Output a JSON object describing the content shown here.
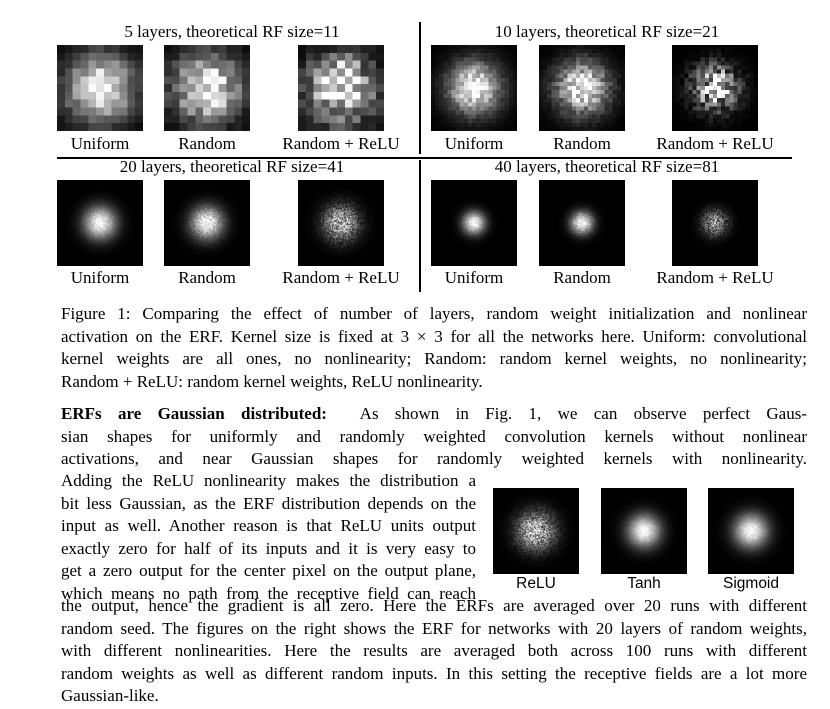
{
  "figure": {
    "panels": [
      {
        "title": "5 layers, theoretical RF size=11",
        "labels": [
          "Uniform",
          "Random",
          "Random + ReLU"
        ]
      },
      {
        "title": "10 layers, theoretical RF size=21",
        "labels": [
          "Uniform",
          "Random",
          "Random + ReLU"
        ]
      },
      {
        "title": "20 layers, theoretical RF size=41",
        "labels": [
          "Uniform",
          "Random",
          "Random + ReLU"
        ]
      },
      {
        "title": "40 layers, theoretical RF size=81",
        "labels": [
          "Uniform",
          "Random",
          "Random + ReLU"
        ]
      }
    ]
  },
  "caption": {
    "lines": [
      "Figure 1: Comparing the effect of number of layers, random weight initialization and nonlinear",
      "activation on the ERF. Kernel size is fixed at 3 × 3 for all the networks here. Uniform: convolutional",
      "kernel weights are all ones, no nonlinearity; Random: random kernel weights, no nonlinearity;",
      "Random + ReLU: random kernel weights, ReLU nonlinearity."
    ]
  },
  "paragraph": {
    "heading": "ERFs are Gaussian distributed:",
    "top_lines": [
      "As shown in Fig. 1, we can observe perfect Gaus-",
      "sian shapes for uniformly and randomly weighted convolution kernels without nonlinear",
      "activations, and near Gaussian shapes for randomly weighted kernels with nonlinearity."
    ],
    "left_lines": [
      "Adding the ReLU nonlinearity makes the distribution a",
      "bit less Gaussian, as the ERF distribution depends on the",
      "input as well. Another reason is that ReLU units output",
      "exactly zero for half of its inputs and it is very easy to",
      "get a zero output for the center pixel on the output plane,",
      "which means no path from the receptive field can reach"
    ],
    "bottom_lines": [
      "the output, hence the gradient is all zero. Here the ERFs are averaged over 20 runs with different",
      "random seed. The figures on the right shows the ERF for networks with 20 layers of random weights,",
      "with different nonlinearities. Here the results are averaged both across 100 runs with different",
      "random weights as well as different random inputs. In this setting the receptive fields are a lot more",
      "Gaussian-like."
    ]
  },
  "nonlinearity_figure": {
    "labels": [
      "ReLU",
      "Tanh",
      "Sigmoid"
    ]
  }
}
